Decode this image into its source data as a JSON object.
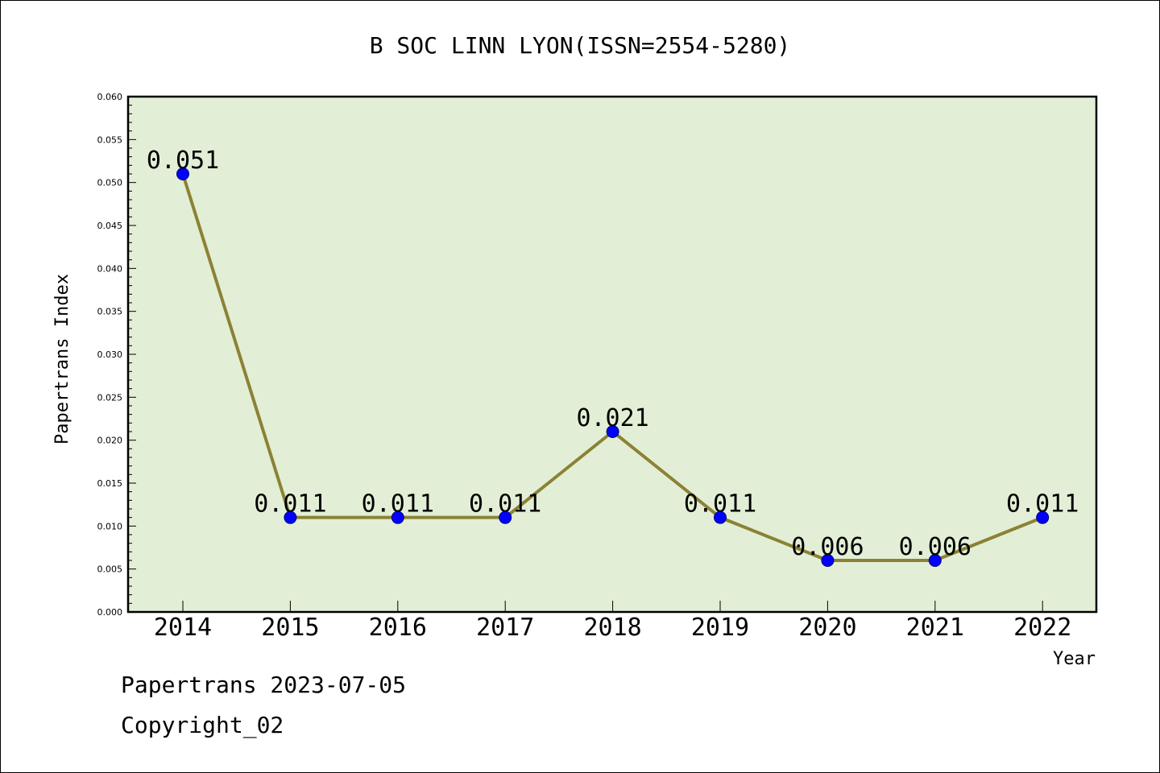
{
  "chart_data": {
    "type": "line",
    "title": "B SOC LINN LYON(ISSN=2554-5280)",
    "xlabel": "Year",
    "ylabel": "Papertrans Index",
    "categories": [
      "2014",
      "2015",
      "2016",
      "2017",
      "2018",
      "2019",
      "2020",
      "2021",
      "2022"
    ],
    "values": [
      0.051,
      0.011,
      0.011,
      0.011,
      0.021,
      0.011,
      0.006,
      0.006,
      0.011
    ],
    "data_labels": [
      "0.051",
      "0.011",
      "0.011",
      "0.011",
      "0.021",
      "0.011",
      "0.006",
      "0.006",
      "0.011"
    ],
    "ylim": [
      0,
      0.06
    ],
    "yticks": [
      "0.000",
      "0.005",
      "0.010",
      "0.015",
      "0.020",
      "0.025",
      "0.030",
      "0.035",
      "0.040",
      "0.045",
      "0.050",
      "0.055",
      "0.060"
    ],
    "grid": false,
    "legend": "none",
    "colors": {
      "plot_background": "#e2efd6",
      "line": "#8c8135",
      "marker": "#0000ff",
      "marker_edge": "#00007a"
    }
  },
  "footer": {
    "line1": "Papertrans 2023-07-05",
    "line2": "Copyright_02"
  }
}
